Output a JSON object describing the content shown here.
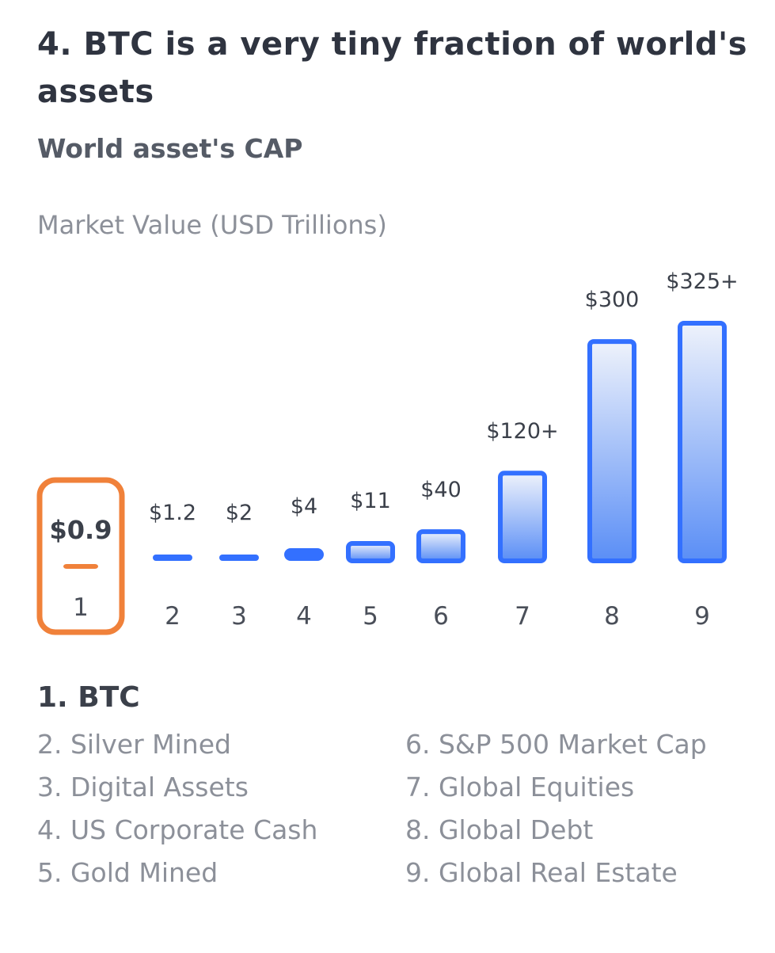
{
  "section_title": "4. BTC is a very tiny fraction of world's assets",
  "chart_data": {
    "type": "bar",
    "title": "World asset's CAP",
    "ylabel": "Market Value (USD Trillions)",
    "categories": [
      "1",
      "2",
      "3",
      "4",
      "5",
      "6",
      "7",
      "8",
      "9"
    ],
    "values": [
      0.9,
      1.2,
      2,
      4,
      11,
      40,
      120,
      300,
      325
    ],
    "value_labels": [
      "$0.9",
      "$1.2",
      "$2",
      "$4",
      "$11",
      "$40",
      "$120+",
      "$300",
      "$325+"
    ],
    "highlight_index": 0,
    "colors": {
      "highlight": "#f0813a",
      "bar": "#3370ff",
      "bar_fill_top": "#eef2fb",
      "bar_fill_bottom": "#5a8ef6"
    }
  },
  "legend": {
    "title": "1. BTC",
    "left": [
      "2. Silver Mined",
      "3. Digital Assets",
      "4. US Corporate Cash",
      "5. Gold Mined"
    ],
    "right": [
      "6. S&P 500 Market Cap",
      "7. Global Equities",
      "8. Global Debt",
      "9. Global Real Estate"
    ]
  }
}
